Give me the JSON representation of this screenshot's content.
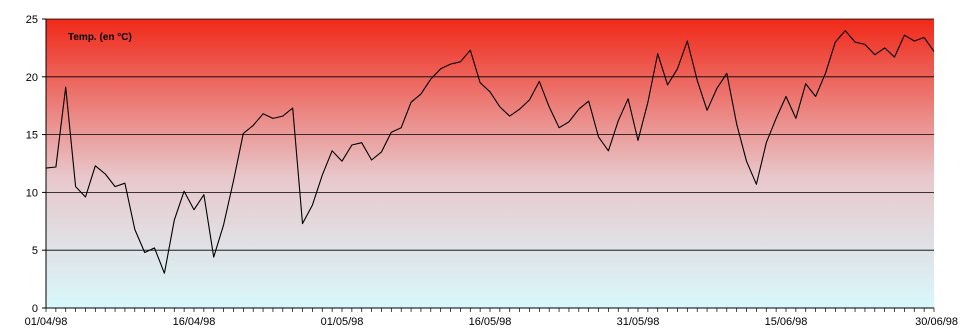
{
  "chart_data": {
    "type": "line",
    "title": "Temp. (en °C)",
    "xlabel": "",
    "ylabel": "",
    "ylim": [
      0,
      25
    ],
    "yticks": [
      0,
      5,
      10,
      15,
      20,
      25
    ],
    "x_start": "01/04/98",
    "x_end": "30/06/98",
    "xtick_labels": [
      "01/04/98",
      "16/04/98",
      "01/05/98",
      "16/05/98",
      "31/05/98",
      "15/06/98",
      "30/06/98"
    ],
    "grid": true,
    "background_gradient": {
      "top": "#f02818",
      "middle": "#e8c8cc",
      "bottom": "#d8f8fc"
    },
    "line_color": "#000000",
    "series": [
      {
        "name": "",
        "values": [
          12.1,
          12.2,
          19.1,
          10.5,
          9.6,
          12.3,
          11.6,
          10.5,
          10.8,
          6.8,
          4.8,
          5.2,
          3.0,
          7.6,
          10.1,
          8.5,
          9.8,
          4.4,
          7.2,
          11.0,
          15.1,
          15.8,
          16.8,
          16.4,
          16.6,
          17.3,
          7.3,
          8.9,
          11.5,
          13.6,
          12.7,
          14.1,
          14.3,
          12.8,
          13.5,
          15.2,
          15.6,
          17.8,
          18.5,
          19.8,
          20.7,
          21.1,
          21.3,
          22.3,
          19.5,
          18.7,
          17.4,
          16.6,
          17.2,
          18.0,
          19.6,
          17.4,
          15.6,
          16.1,
          17.2,
          17.9,
          14.8,
          13.6,
          16.2,
          18.1,
          14.5,
          17.8,
          22.0,
          19.3,
          20.7,
          23.1,
          19.7,
          17.1,
          19.0,
          20.3,
          15.9,
          12.7,
          10.7,
          14.3,
          16.4,
          18.3,
          16.4,
          19.4,
          18.3,
          20.3,
          23.0,
          24.0,
          23.0,
          22.8,
          21.9,
          22.5,
          21.7,
          23.6,
          23.1,
          23.4,
          22.2
        ]
      }
    ]
  }
}
